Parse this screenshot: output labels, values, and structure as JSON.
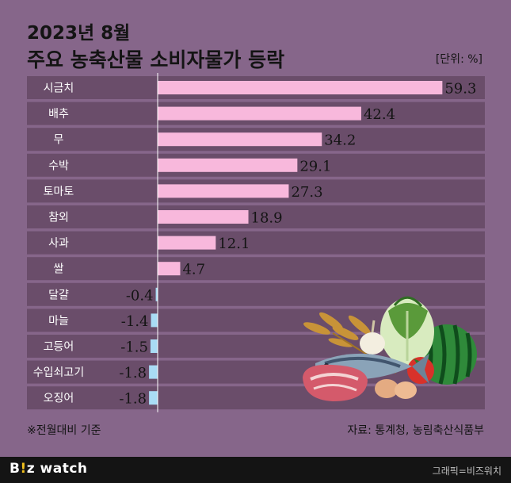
{
  "title_line1": "2023년 8월",
  "title_line2": "주요 농축산물 소비자물가 등락",
  "unit": "[단위: %]",
  "footnote": "※전월대비 기준",
  "source": "자료: 통계청, 농림축산식품부",
  "brand": {
    "logo_prefix": "B",
    "logo_accent": "!",
    "logo_suffix": "z watch"
  },
  "credit": "그래픽=비즈워치",
  "colors": {
    "background": "#86668a",
    "band": "#6a4d6a",
    "positive_bar": "#f8b8dc",
    "negative_bar": "#a9dcf5"
  },
  "chart_data": {
    "type": "bar",
    "orientation": "horizontal",
    "categories": [
      "시금치",
      "배추",
      "무",
      "수박",
      "토마토",
      "참외",
      "사과",
      "쌀",
      "달걀",
      "마늘",
      "고등어",
      "수입쇠고기",
      "오징어"
    ],
    "values": [
      59.3,
      42.4,
      34.2,
      29.1,
      27.3,
      18.9,
      12.1,
      4.7,
      -0.4,
      -1.4,
      -1.5,
      -1.8,
      -1.8
    ],
    "value_labels": [
      "59.3",
      "42.4",
      "34.2",
      "29.1",
      "27.3",
      "18.9",
      "12.1",
      "4.7",
      "-0.4",
      "-1.4",
      "-1.5",
      "-1.8",
      "-1.8"
    ]
  }
}
